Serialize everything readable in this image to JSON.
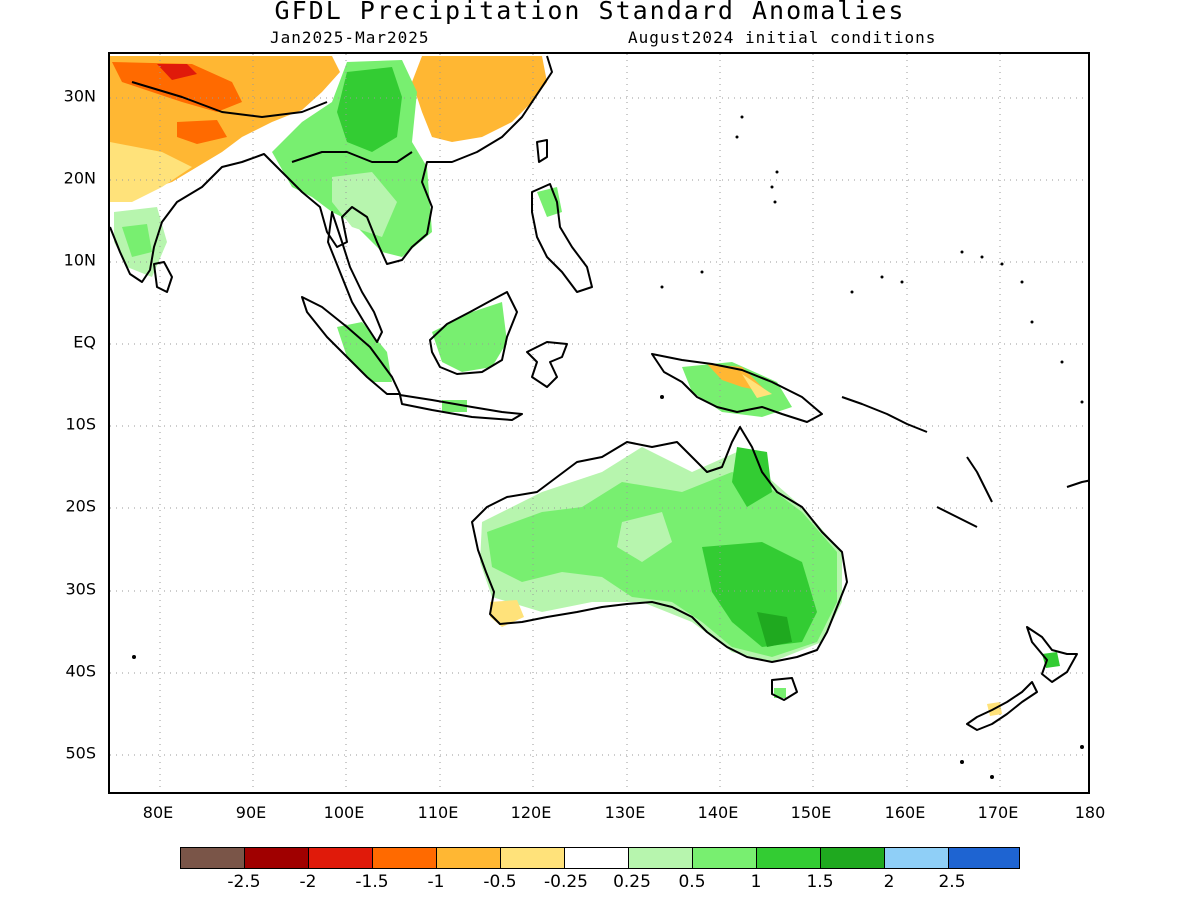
{
  "header": {
    "title": "GFDL Precipitation Standard Anomalies",
    "period": "Jan2025-Mar2025",
    "init": "August2024 initial conditions"
  },
  "axes": {
    "y_labels": [
      "30N",
      "20N",
      "10N",
      "EQ",
      "10S",
      "20S",
      "30S",
      "40S",
      "50S"
    ],
    "x_labels": [
      "80E",
      "90E",
      "100E",
      "110E",
      "120E",
      "130E",
      "140E",
      "150E",
      "160E",
      "170E",
      "180"
    ]
  },
  "colorbar": {
    "colors": [
      "#7a5548",
      "#a00000",
      "#e01a0a",
      "#ff6a00",
      "#ffb733",
      "#ffe27a",
      "#ffffff",
      "#b7f5ae",
      "#78ef70",
      "#33cc33",
      "#1fa91f",
      "#8fcff7",
      "#1e64d2"
    ],
    "labels": [
      "-2.5",
      "-2",
      "-1.5",
      "-1",
      "-0.5",
      "-0.25",
      "0.25",
      "0.5",
      "1",
      "1.5",
      "2",
      "2.5"
    ]
  },
  "map_colors": {
    "land_outline": "#000000",
    "grid": "#9a9a9a"
  }
}
